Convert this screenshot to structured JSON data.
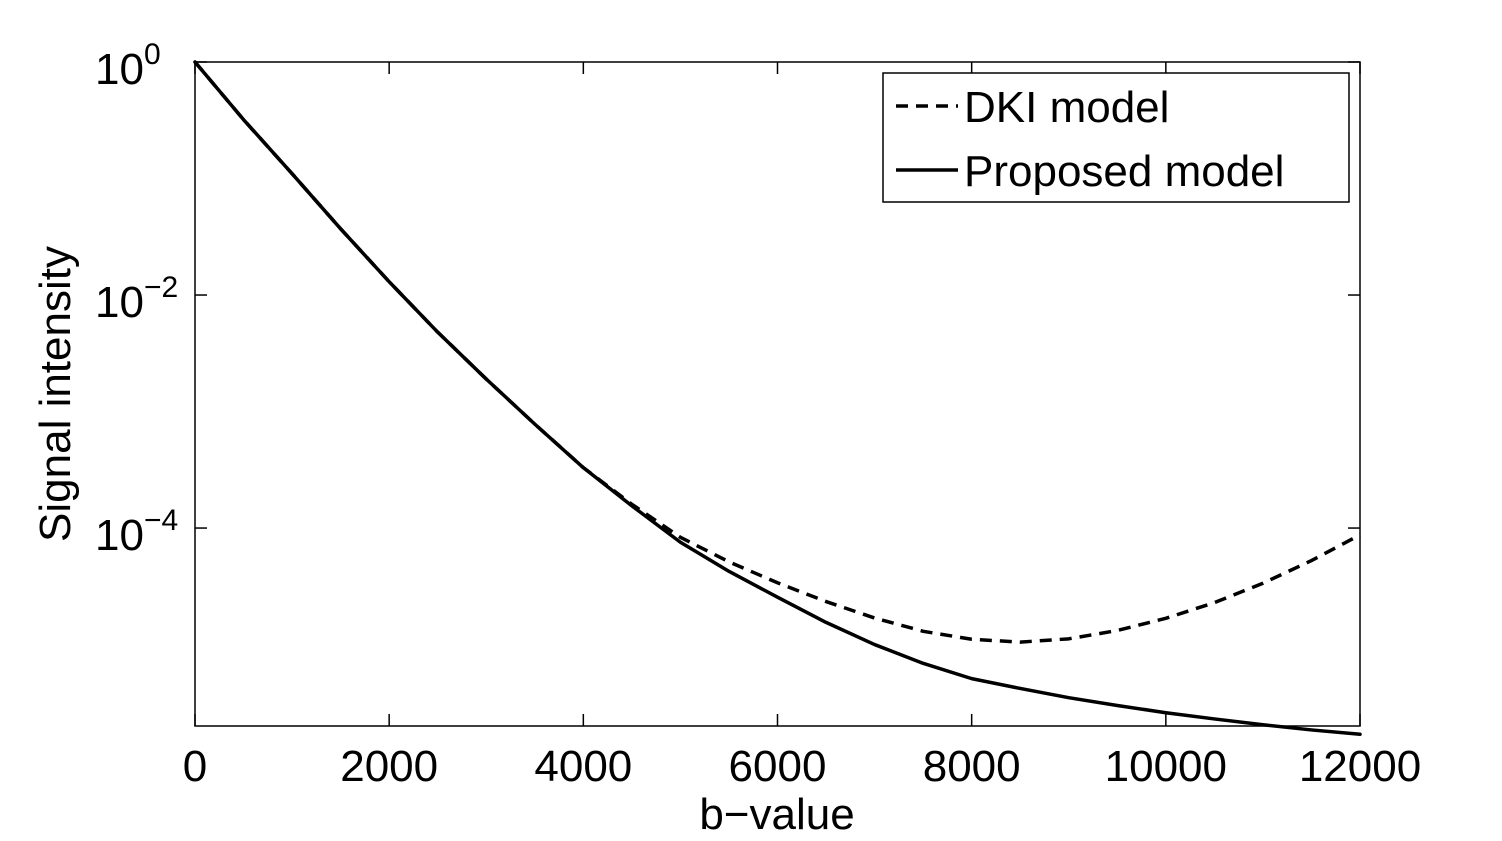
{
  "chart_data": {
    "type": "line",
    "title": "",
    "xlabel": "b−value",
    "ylabel": "Signal intensity",
    "xlim": [
      0,
      12000
    ],
    "ylim": [
      2e-06,
      1
    ],
    "yscale": "log",
    "grid": false,
    "legend_position": "top-right",
    "x_ticks": [
      0,
      2000,
      4000,
      6000,
      8000,
      10000,
      12000
    ],
    "x_tick_labels": [
      "0",
      "2000",
      "4000",
      "6000",
      "8000",
      "10000",
      "12000"
    ],
    "y_ticks": [
      1,
      0.01,
      0.0001
    ],
    "y_tick_labels": [
      {
        "base": "10",
        "exp": "0"
      },
      {
        "base": "10",
        "exp": "−2"
      },
      {
        "base": "10",
        "exp": "−4"
      }
    ],
    "series": [
      {
        "name": "DKI model",
        "style": "dashed",
        "color": "#000000",
        "x": [
          0,
          500,
          1000,
          1500,
          2000,
          2500,
          3000,
          3500,
          4000,
          4500,
          5000,
          5500,
          6000,
          6500,
          7000,
          7500,
          8000,
          8500,
          9000,
          9500,
          10000,
          10500,
          11000,
          11500,
          12000
        ],
        "y": [
          1,
          0.32,
          0.11,
          0.037,
          0.013,
          0.0048,
          0.0019,
          0.00078,
          0.00033,
          0.00016,
          8.32e-05,
          5.13e-05,
          3.39e-05,
          2.34e-05,
          1.69e-05,
          1.3e-05,
          1.11e-05,
          1.05e-05,
          1.12e-05,
          1.32e-05,
          1.68e-05,
          2.29e-05,
          3.36e-05,
          5.26e-05,
          8.74e-05
        ]
      },
      {
        "name": "Proposed model",
        "style": "solid",
        "color": "#000000",
        "x": [
          0,
          500,
          1000,
          1500,
          2000,
          2500,
          3000,
          3500,
          4000,
          4500,
          5000,
          5500,
          6000,
          6500,
          7000,
          7500,
          8000,
          8500,
          9000,
          9500,
          10000,
          10500,
          11000,
          11500,
          12000
        ],
        "y": [
          1,
          0.32,
          0.11,
          0.037,
          0.013,
          0.0048,
          0.0019,
          0.00078,
          0.00033,
          0.000155,
          7.55e-05,
          4.25e-05,
          2.55e-05,
          1.55e-05,
          1e-05,
          6.9e-06,
          5.1e-06,
          4.2e-06,
          3.5e-06,
          3e-06,
          2.6e-06,
          2.3e-06,
          2.05e-06,
          1.85e-06,
          1.7e-06
        ]
      }
    ]
  }
}
